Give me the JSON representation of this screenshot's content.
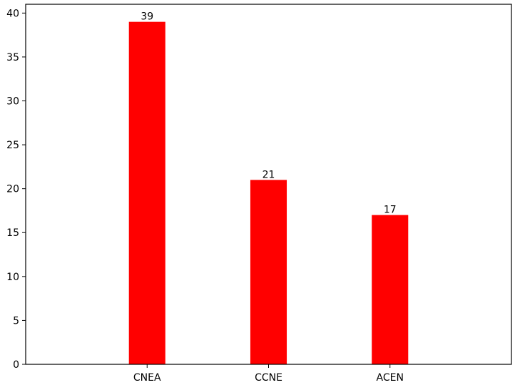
{
  "chart_data": {
    "type": "bar",
    "title": "",
    "xlabel": "",
    "ylabel": "",
    "categories": [
      "CNEA",
      "CCNE",
      "ACEN"
    ],
    "values": [
      39,
      21,
      17
    ],
    "data_labels": [
      "39",
      "21",
      "17"
    ],
    "ylim": [
      0,
      41
    ],
    "yticks": [
      0,
      5,
      10,
      15,
      20,
      25,
      30,
      35,
      40
    ],
    "grid": false,
    "legend": "none",
    "bar_color": "#ff0000",
    "axis_color": "#000000"
  }
}
